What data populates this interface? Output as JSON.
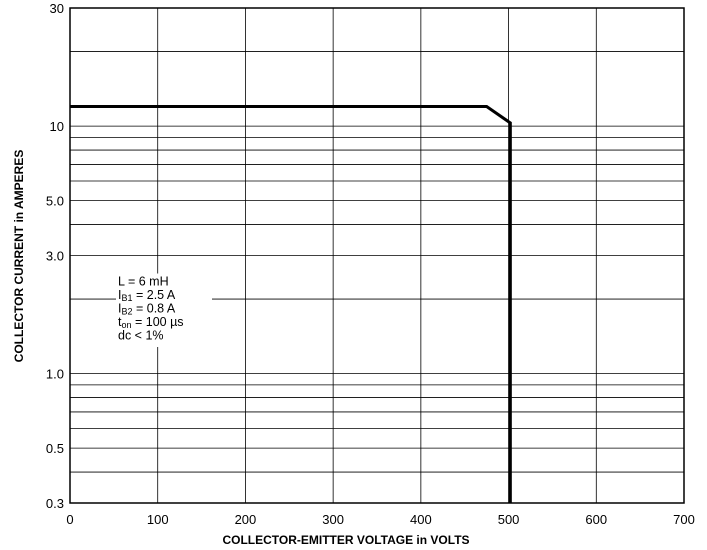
{
  "chart_data": {
    "type": "line",
    "title": "",
    "xlabel": "COLLECTOR-EMITTER VOLTAGE in VOLTS",
    "ylabel": "COLLECTOR CURRENT in AMPERES",
    "xlim": [
      0,
      700
    ],
    "ylim": [
      0.3,
      30
    ],
    "yscale": "log",
    "grid": true,
    "x_ticks": [
      0,
      100,
      200,
      300,
      400,
      500,
      600,
      700
    ],
    "x_tick_labels": [
      "0",
      "100",
      "200",
      "300",
      "400",
      "500",
      "600",
      "700"
    ],
    "y_ticks": [
      0.3,
      0.5,
      1.0,
      3.0,
      5.0,
      10,
      30
    ],
    "y_tick_labels": [
      "0.3",
      "0.5",
      "1.0",
      "3.0",
      "5.0",
      "10",
      "30"
    ],
    "y_gridlines": [
      0.3,
      0.4,
      0.5,
      0.6,
      0.7,
      0.8,
      0.9,
      1,
      2,
      3,
      4,
      5,
      6,
      7,
      8,
      9,
      10,
      20,
      30
    ],
    "series": [
      {
        "x": [
          0,
          475,
          502,
          502
        ],
        "y": [
          12,
          12,
          10.3,
          0.3
        ]
      }
    ],
    "annotation": {
      "lines": [
        {
          "main": "L = 6 mH",
          "sub": "",
          "rest": ""
        },
        {
          "main": "I",
          "sub": "B1",
          "rest": " = 2.5 A"
        },
        {
          "main": "I",
          "sub": "B2",
          "rest": " = 0.8 A"
        },
        {
          "main": "t",
          "sub": "on",
          "rest": " = 100 µs"
        },
        {
          "main": "dc < 1%",
          "sub": "",
          "rest": ""
        }
      ]
    }
  }
}
